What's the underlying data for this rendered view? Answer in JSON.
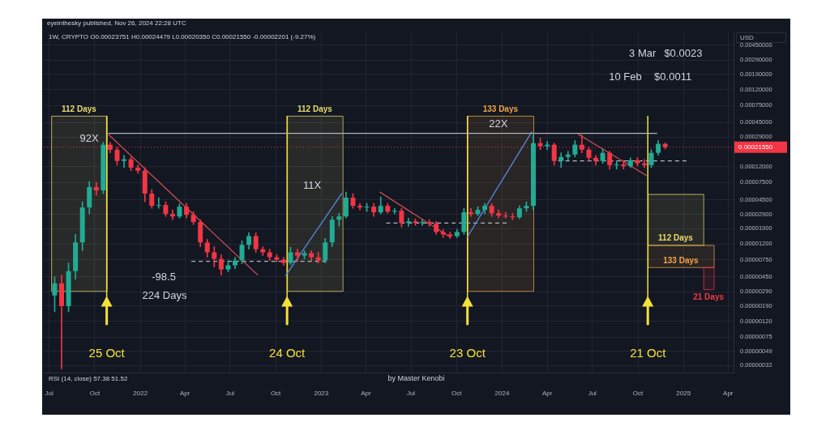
{
  "chart_data": {
    "type": "candlestick",
    "x": [
      "2021-07-12",
      "2021-07-26",
      "2021-08-09",
      "2021-08-23",
      "2021-09-06",
      "2021-09-20",
      "2021-10-04",
      "2021-10-18",
      "2021-11-01",
      "2021-11-15",
      "2021-11-29",
      "2021-12-13",
      "2021-12-27",
      "2022-01-10",
      "2022-01-24",
      "2022-02-07",
      "2022-02-21",
      "2022-03-07",
      "2022-03-21",
      "2022-04-04",
      "2022-04-18",
      "2022-05-02",
      "2022-05-16",
      "2022-05-30",
      "2022-06-13",
      "2022-06-27",
      "2022-07-11",
      "2022-07-25",
      "2022-08-08",
      "2022-08-22",
      "2022-09-05",
      "2022-09-19",
      "2022-10-03",
      "2022-10-17",
      "2022-10-31",
      "2022-11-14",
      "2022-11-28",
      "2022-12-12",
      "2022-12-26",
      "2023-01-09",
      "2023-01-23",
      "2023-02-06",
      "2023-02-20",
      "2023-03-06",
      "2023-03-20",
      "2023-04-03",
      "2023-04-17",
      "2023-05-01",
      "2023-05-15",
      "2023-05-29",
      "2023-06-12",
      "2023-06-26",
      "2023-07-10",
      "2023-07-24",
      "2023-08-07",
      "2023-08-21",
      "2023-09-04",
      "2023-09-18",
      "2023-10-02",
      "2023-10-16",
      "2023-10-30",
      "2023-11-13",
      "2023-11-27",
      "2023-12-11",
      "2023-12-25",
      "2024-01-08",
      "2024-01-22",
      "2024-02-05",
      "2024-02-19",
      "2024-03-04",
      "2024-03-18",
      "2024-04-01",
      "2024-04-15",
      "2024-04-29",
      "2024-05-13",
      "2024-05-27",
      "2024-06-10",
      "2024-06-24",
      "2024-07-08",
      "2024-07-22",
      "2024-08-05",
      "2024-08-19",
      "2024-09-02",
      "2024-09-16",
      "2024-09-30",
      "2024-10-14",
      "2024-10-28",
      "2024-11-11",
      "2024-11-25"
    ],
    "ohlc": [
      [
        2.59e-06,
        4.52e-06,
        1.59e-06,
        3.72e-06
      ],
      [
        3.72e-06,
        4.75e-06,
        2.9e-07,
        1.89e-06
      ],
      [
        1.89e-06,
        6.84e-06,
        1.59e-06,
        5.36e-06
      ],
      [
        5.36e-06,
        1.6e-05,
        4.2e-06,
        1.26e-05
      ],
      [
        1.26e-05,
        4.23e-05,
        9.84e-06,
        3.57e-05
      ],
      [
        3.57e-05,
        7.77e-05,
        2.94e-05,
        6.55e-05
      ],
      [
        6.55e-05,
        7.58e-05,
        5.14e-05,
        5.95e-05
      ],
      [
        5.95e-05,
        0.000249,
        5.4e-05,
        0.000232
      ],
      [
        0.000232,
        0.000249,
        0.000182,
        0.0002
      ],
      [
        0.0002,
        0.000216,
        0.000126,
        0.000143
      ],
      [
        0.000143,
        0.000169,
        0.000117,
        0.00015
      ],
      [
        0.00015,
        0.000161,
        0.000107,
        0.000117
      ],
      [
        0.000117,
        0.000126,
        9.9e-05,
        0.000107
      ],
      [
        0.000107,
        0.000117,
        4.23e-05,
        5.4e-05
      ],
      [
        5.4e-05,
        6.09e-05,
        3.48e-05,
        3.75e-05
      ],
      [
        3.75e-05,
        4.78e-05,
        3.48e-05,
        3.84e-05
      ],
      [
        3.84e-05,
        4.23e-05,
        2.73e-05,
        2.94e-05
      ],
      [
        2.94e-05,
        3.32e-05,
        2.48e-05,
        2.73e-05
      ],
      [
        2.73e-05,
        4.03e-05,
        2.6e-05,
        3.66e-05
      ],
      [
        3.66e-05,
        4.03e-05,
        2.6e-05,
        2.87e-05
      ],
      [
        2.87e-05,
        3.16e-05,
        2.14e-05,
        2.31e-05
      ],
      [
        2.31e-05,
        2.48e-05,
        1.11e-05,
        1.26e-05
      ],
      [
        1.26e-05,
        1.38e-05,
        8.1e-06,
        9.38e-06
      ],
      [
        9.38e-06,
        1.11e-05,
        6.05e-06,
        7.72e-06
      ],
      [
        7.72e-06,
        8.72e-06,
        4.75e-06,
        5.63e-06
      ],
      [
        5.63e-06,
        7.35e-06,
        5.23e-06,
        6.36e-06
      ],
      [
        6.36e-06,
        8.1e-06,
        5.77e-06,
        7.35e-06
      ],
      [
        7.35e-06,
        1.32e-05,
        6.67e-06,
        1.17e-05
      ],
      [
        1.17e-05,
        1.68e-05,
        1.03e-05,
        1.52e-05
      ],
      [
        1.52e-05,
        1.68e-05,
        9.38e-06,
        1.03e-05
      ],
      [
        1.03e-05,
        1.11e-05,
        8.51e-06,
        9.38e-06
      ],
      [
        9.38e-06,
        1.03e-05,
        7.35e-06,
        8.1e-06
      ],
      [
        8.1e-06,
        8.72e-06,
        7e-06,
        7.53e-06
      ],
      [
        7.53e-06,
        8.1e-06,
        6.36e-06,
        6.84e-06
      ],
      [
        6.84e-06,
        1.09e-05,
        6.51e-06,
        9.38e-06
      ],
      [
        9.38e-06,
        1.03e-05,
        7.18e-06,
        8.51e-06
      ],
      [
        8.51e-06,
        9.84e-06,
        7.72e-06,
        9.15e-06
      ],
      [
        9.15e-06,
        9.84e-06,
        7.35e-06,
        8.1e-06
      ],
      [
        8.1e-06,
        9.38e-06,
        6.84e-06,
        7.35e-06
      ],
      [
        7.35e-06,
        1.42e-05,
        6.84e-06,
        1.26e-05
      ],
      [
        1.26e-05,
        2.73e-05,
        1.11e-05,
        2.48e-05
      ],
      [
        2.48e-05,
        3.01e-05,
        2.04e-05,
        2.73e-05
      ],
      [
        2.73e-05,
        5.66e-05,
        2.6e-05,
        4.78e-05
      ],
      [
        4.78e-05,
        5.4e-05,
        3.48e-05,
        3.75e-05
      ],
      [
        3.75e-05,
        4.03e-05,
        3.32e-05,
        3.57e-05
      ],
      [
        3.57e-05,
        4.03e-05,
        3.16e-05,
        3.66e-05
      ],
      [
        3.66e-05,
        4.03e-05,
        2.73e-05,
        3.09e-05
      ],
      [
        3.09e-05,
        4.9e-05,
        2.94e-05,
        3.75e-05
      ],
      [
        3.75e-05,
        4.03e-05,
        3.01e-05,
        3.16e-05
      ],
      [
        3.16e-05,
        3.48e-05,
        2.94e-05,
        3.24e-05
      ],
      [
        3.24e-05,
        3.48e-05,
        1.99e-05,
        2.25e-05
      ],
      [
        2.25e-05,
        2.6e-05,
        2.04e-05,
        2.36e-05
      ],
      [
        2.36e-05,
        2.54e-05,
        2.09e-05,
        2.25e-05
      ],
      [
        2.25e-05,
        2.48e-05,
        2.09e-05,
        2.31e-05
      ],
      [
        2.31e-05,
        2.48e-05,
        2.04e-05,
        2.2e-05
      ],
      [
        2.2e-05,
        2.36e-05,
        1.6e-05,
        1.72e-05
      ],
      [
        1.72e-05,
        1.85e-05,
        1.45e-05,
        1.6e-05
      ],
      [
        1.6e-05,
        1.72e-05,
        1.42e-05,
        1.52e-05
      ],
      [
        1.52e-05,
        1.85e-05,
        1.45e-05,
        1.72e-05
      ],
      [
        1.72e-05,
        3.48e-05,
        1.6e-05,
        3.09e-05
      ],
      [
        3.09e-05,
        3.48e-05,
        2.73e-05,
        2.94e-05
      ],
      [
        2.94e-05,
        3.66e-05,
        2.8e-05,
        3.32e-05
      ],
      [
        3.32e-05,
        4.03e-05,
        2.94e-05,
        3.75e-05
      ],
      [
        3.75e-05,
        4.03e-05,
        2.73e-05,
        3.01e-05
      ],
      [
        3.01e-05,
        3.32e-05,
        2.6e-05,
        2.8e-05
      ],
      [
        2.8e-05,
        3.09e-05,
        2.6e-05,
        2.73e-05
      ],
      [
        2.73e-05,
        3.01e-05,
        2.48e-05,
        2.67e-05
      ],
      [
        2.67e-05,
        3.75e-05,
        2.54e-05,
        3.48e-05
      ],
      [
        3.48e-05,
        4.23e-05,
        3.16e-05,
        3.75e-05
      ],
      [
        3.75e-05,
        0.00031,
        3.32e-05,
        0.000243
      ],
      [
        0.000243,
        0.000282,
        0.0002,
        0.000221
      ],
      [
        0.000221,
        0.000256,
        0.0002,
        0.000232
      ],
      [
        0.000232,
        0.000243,
        0.000126,
        0.000143
      ],
      [
        0.000143,
        0.000182,
        0.000117,
        0.000161
      ],
      [
        0.000161,
        0.000191,
        0.000146,
        0.000173
      ],
      [
        0.000173,
        0.000262,
        0.000161,
        0.000232
      ],
      [
        0.000232,
        0.00031,
        0.000182,
        0.0002
      ],
      [
        0.0002,
        0.000216,
        0.000143,
        0.000157
      ],
      [
        0.000157,
        0.000169,
        0.000126,
        0.000143
      ],
      [
        0.000143,
        0.000205,
        0.000133,
        0.000182
      ],
      [
        0.000182,
        0.000191,
        0.000112,
        0.000126
      ],
      [
        0.000126,
        0.000143,
        0.000112,
        0.000129
      ],
      [
        0.000129,
        0.000146,
        0.000112,
        0.000123
      ],
      [
        0.000123,
        0.000157,
        0.000117,
        0.000146
      ],
      [
        0.000146,
        0.000157,
        0.000123,
        0.000133
      ],
      [
        0.000133,
        0.00015,
        0.000117,
        0.000126
      ],
      [
        0.000126,
        0.0002,
        0.000117,
        0.000182
      ],
      [
        0.000182,
        0.000262,
        0.000169,
        0.000238
      ],
      [
        0.00023751,
        0.00024479,
        0.0002035,
        0.0002155
      ]
    ],
    "colors": [
      "#22ab94",
      "#f23645",
      "#22ab94",
      "#22ab94",
      "#22ab94",
      "#22ab94",
      "#f23645",
      "#22ab94",
      "#f23645",
      "#f23645",
      "#22ab94",
      "#f23645",
      "#f23645",
      "#f23645",
      "#f23645",
      "#22ab94",
      "#f23645",
      "#f23645",
      "#22ab94",
      "#f23645",
      "#f23645",
      "#f23645",
      "#f23645",
      "#f23645",
      "#f23645",
      "#22ab94",
      "#22ab94",
      "#22ab94",
      "#22ab94",
      "#f23645",
      "#f23645",
      "#f23645",
      "#f23645",
      "#f23645",
      "#22ab94",
      "#f23645",
      "#22ab94",
      "#f23645",
      "#f23645",
      "#22ab94",
      "#22ab94",
      "#22ab94",
      "#22ab94",
      "#f23645",
      "#f23645",
      "#22ab94",
      "#f23645",
      "#22ab94",
      "#f23645",
      "#22ab94",
      "#f23645",
      "#22ab94",
      "#f23645",
      "#22ab94",
      "#f23645",
      "#f23645",
      "#f23645",
      "#f23645",
      "#22ab94",
      "#22ab94",
      "#f23645",
      "#22ab94",
      "#22ab94",
      "#f23645",
      "#f23645",
      "#f23645",
      "#f23645",
      "#22ab94",
      "#22ab94",
      "#22ab94",
      "#f23645",
      "#22ab94",
      "#f23645",
      "#22ab94",
      "#22ab94",
      "#22ab94",
      "#f23645",
      "#f23645",
      "#f23645",
      "#22ab94",
      "#f23645",
      "#22ab94",
      "#f23645",
      "#22ab94",
      "#f23645",
      "#f23645",
      "#22ab94",
      "#22ab94",
      "#f23645"
    ],
    "series": [
      {
        "type": "line",
        "x": [
          "2021-10-28",
          "2022-08-26"
        ],
        "values": [
          0.000318,
          4.75e-06
        ],
        "color": "#e0535a"
      },
      {
        "type": "line",
        "x": [
          "2021-10-28",
          "2024-11-09"
        ],
        "values": [
          0.000326,
          0.000326
        ],
        "color": "#b2b5be"
      },
      {
        "type": "line",
        "x": [
          "2022-10-21",
          "2023-02-12"
        ],
        "values": [
          4.67e-06,
          5.49e-05
        ],
        "color": "#5b8def"
      },
      {
        "type": "line",
        "x": [
          "2023-04-29",
          "2023-09-20"
        ],
        "values": [
          5.66e-05,
          1.45e-05
        ],
        "color": "#e0535a"
      },
      {
        "type": "line",
        "x": [
          "2023-10-22",
          "2024-03-01"
        ],
        "values": [
          1.45e-05,
          0.000342
        ],
        "color": "#5b8def"
      },
      {
        "type": "line",
        "x": [
          "2024-06-02",
          "2024-10-19"
        ],
        "values": [
          0.000318,
          9.21e-05
        ],
        "color": "#e0535a"
      },
      {
        "type": "line",
        "x": [
          "2022-04-14",
          "2023-01-11"
        ],
        "values": [
          7.18e-06,
          7.18e-06
        ],
        "color": "#b2b5be",
        "line_style": "dashed"
      },
      {
        "type": "line",
        "x": [
          "2023-05-12",
          "2024-01-10"
        ],
        "values": [
          2.25e-05,
          2.25e-05
        ],
        "color": "#b2b5be",
        "line_style": "dashed"
      },
      {
        "type": "line",
        "x": [
          "2024-04-23",
          "2025-01-07"
        ],
        "values": [
          0.000143,
          0.000143
        ],
        "color": "#b2b5be",
        "line_style": "dashed"
      }
    ],
    "ylabel": "USD",
    "log": true,
    "grid": true,
    "xlim": [
      "2021-06-20",
      "2025-04-12"
    ],
    "xticks": [
      {
        "value": "2021-07-01",
        "label": "Jul"
      },
      {
        "value": "2021-10-01",
        "label": "Oct"
      },
      {
        "value": "2022-01-01",
        "label": "2022"
      },
      {
        "value": "2022-04-01",
        "label": "Apr"
      },
      {
        "value": "2022-07-01",
        "label": "Jul"
      },
      {
        "value": "2022-10-01",
        "label": "Oct"
      },
      {
        "value": "2023-01-01",
        "label": "2023"
      },
      {
        "value": "2023-04-01",
        "label": "Apr"
      },
      {
        "value": "2023-07-01",
        "label": "Jul"
      },
      {
        "value": "2023-10-01",
        "label": "Oct"
      },
      {
        "value": "2024-01-01",
        "label": "2024"
      },
      {
        "value": "2024-04-01",
        "label": "Apr"
      },
      {
        "value": "2024-07-01",
        "label": "Jul"
      },
      {
        "value": "2024-10-01",
        "label": "Oct"
      },
      {
        "value": "2025-01-01",
        "label": "2025"
      },
      {
        "value": "2025-04-01",
        "label": "Apr"
      }
    ],
    "ylim": [
      2.6e-07,
      0.0066
    ],
    "yticks": [
      {
        "value": 0.0045,
        "label": "0.00450000"
      },
      {
        "value": 0.0029,
        "label": "0.00290000"
      },
      {
        "value": 0.0019,
        "label": "0.00190000"
      },
      {
        "value": 0.0012,
        "label": "0.00120000"
      },
      {
        "value": 0.00075,
        "label": "0.00075000"
      },
      {
        "value": 0.00045,
        "label": "0.00045000"
      },
      {
        "value": 0.00029,
        "label": "0.00029000"
      },
      {
        "value": 0.00012,
        "label": "0.00012000"
      },
      {
        "value": 7.5e-05,
        "label": "0.00007500"
      },
      {
        "value": 4.5e-05,
        "label": "0.00004500"
      },
      {
        "value": 2.9e-05,
        "label": "0.00002900"
      },
      {
        "value": 1.9e-05,
        "label": "0.00001900"
      },
      {
        "value": 1.2e-05,
        "label": "0.00001200"
      },
      {
        "value": 7.5e-06,
        "label": "0.00000750"
      },
      {
        "value": 4.5e-06,
        "label": "0.00000450"
      },
      {
        "value": 2.9e-06,
        "label": "0.00000290"
      },
      {
        "value": 1.9e-06,
        "label": "0.00000190"
      },
      {
        "value": 1.2e-06,
        "label": "0.00000120"
      },
      {
        "value": 7.5e-07,
        "label": "0.00000075"
      },
      {
        "value": 4.9e-07,
        "label": "0.00000049"
      },
      {
        "value": 3.2e-07,
        "label": "0.00000032"
      }
    ],
    "ref_lines": [
      {
        "axis": "y",
        "value": 0.0002155,
        "label": "0.00021550",
        "color": "#f23645",
        "line_style": "dotted"
      },
      {
        "axis": "x",
        "value": "2021-10-25",
        "label": "25 Oct",
        "color": "#f5e13a"
      },
      {
        "axis": "x",
        "value": "2022-10-24",
        "label": "24 Oct",
        "color": "#f5e13a"
      },
      {
        "axis": "x",
        "value": "2023-10-23",
        "label": "23 Oct",
        "color": "#f5e13a"
      },
      {
        "axis": "x",
        "value": "2024-10-21",
        "label": "21 Oct",
        "color": "#f5e13a"
      }
    ],
    "bands": [
      {
        "axis": "x",
        "from": "2021-07-05",
        "to": "2021-10-25",
        "label": "112 Days",
        "color": "#e6d96a"
      },
      {
        "axis": "x",
        "from": "2022-10-24",
        "to": "2023-02-13",
        "label": "112 Days",
        "color": "#e6d96a"
      },
      {
        "axis": "x",
        "from": "2023-10-23",
        "to": "2024-03-04",
        "label": "133 Days",
        "color": "#f0a443"
      },
      {
        "axis": "x",
        "from": "2024-10-21",
        "to": "2025-02-10",
        "label": "112 Days",
        "color": "#e6d96a"
      },
      {
        "axis": "x",
        "from": "2024-10-21",
        "to": "2025-03-03",
        "label": "133 Days",
        "color": "#f0a443"
      },
      {
        "axis": "x",
        "from": "2025-02-10",
        "to": "2025-03-03",
        "label": "21 Days",
        "color": "#f23645"
      }
    ],
    "annotations": [
      "eyeinthesky published, Nov 26, 2024 22:28 UTC",
      "1W, CRYPTO O0.00023751 H0.00024479 L0.00020350 C0.00021550 -0.00002201 (-9.27%)",
      "RSI (14, close) 57.38 51.52",
      "by Master Kenobi",
      "92X",
      "11X",
      "22X",
      "-98.5",
      "224 Days",
      "3 Mar",
      "$0.0023",
      "10 Feb",
      "$0.0011"
    ]
  }
}
